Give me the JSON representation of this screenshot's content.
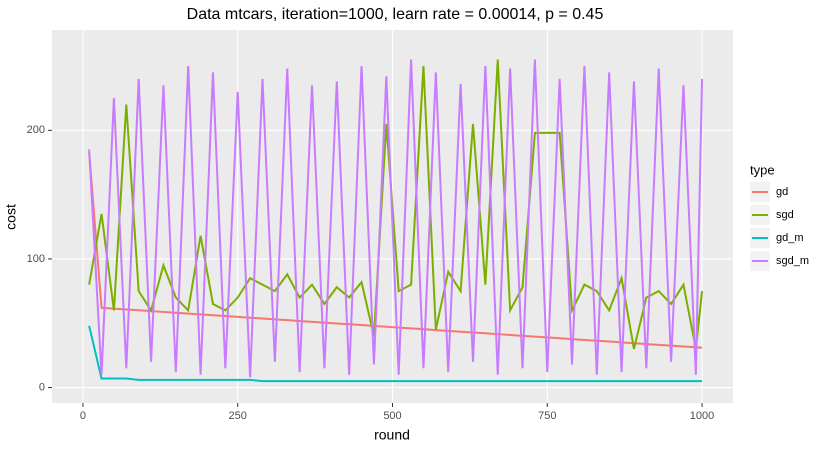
{
  "chart_data": {
    "type": "line",
    "title": "Data mtcars, iteration=1000, learn rate = 0.00014, p = 0.45",
    "x_label": "round",
    "y_label": "cost",
    "legend_title": "type",
    "x": [
      10,
      30,
      50,
      70,
      90,
      110,
      130,
      150,
      170,
      190,
      210,
      230,
      250,
      270,
      290,
      310,
      330,
      350,
      370,
      390,
      410,
      430,
      450,
      470,
      490,
      510,
      530,
      550,
      570,
      590,
      610,
      630,
      650,
      670,
      690,
      710,
      730,
      750,
      770,
      790,
      810,
      830,
      850,
      870,
      890,
      910,
      930,
      950,
      970,
      990,
      1000
    ],
    "series": [
      {
        "name": "gd",
        "color": "#F8766D",
        "values": [
          183,
          62,
          61.4,
          60.7,
          60.1,
          59.4,
          58.8,
          58.2,
          57.5,
          56.9,
          56.2,
          55.6,
          55,
          54.3,
          53.7,
          53,
          52.4,
          51.8,
          51.1,
          50.5,
          49.8,
          49.2,
          48.6,
          47.9,
          47.3,
          46.6,
          46,
          45.4,
          44.7,
          44.1,
          43.4,
          42.8,
          42.2,
          41.5,
          40.9,
          40.2,
          39.6,
          39,
          38.3,
          37.7,
          37,
          36.4,
          35.8,
          35.1,
          34.5,
          33.8,
          33.2,
          32.6,
          31.9,
          31.3,
          31
        ]
      },
      {
        "name": "sgd",
        "color": "#7CAE00",
        "values": [
          80,
          135,
          60,
          220,
          75,
          60,
          95,
          70,
          60,
          118,
          65,
          60,
          70,
          85,
          80,
          75,
          88,
          70,
          80,
          65,
          78,
          70,
          82,
          40,
          205,
          75,
          80,
          250,
          45,
          90,
          75,
          205,
          80,
          255,
          60,
          78,
          198,
          198,
          198,
          60,
          80,
          75,
          60,
          85,
          30,
          70,
          75,
          65,
          80,
          30,
          75
        ]
      },
      {
        "name": "gd_m",
        "color": "#00BFC4",
        "values": [
          48,
          7,
          7,
          7,
          6,
          6,
          6,
          6,
          6,
          6,
          6,
          6,
          6,
          6,
          5,
          5,
          5,
          5,
          5,
          5,
          5,
          5,
          5,
          5,
          5,
          5,
          5,
          5,
          5,
          5,
          5,
          5,
          5,
          5,
          5,
          5,
          5,
          5,
          5,
          5,
          5,
          5,
          5,
          5,
          5,
          5,
          5,
          5,
          5,
          5,
          5
        ]
      },
      {
        "name": "sgd_m",
        "color": "#C77CFF",
        "values": [
          185,
          10,
          225,
          15,
          240,
          20,
          235,
          12,
          250,
          10,
          245,
          15,
          230,
          8,
          240,
          20,
          248,
          12,
          235,
          15,
          238,
          10,
          250,
          18,
          242,
          10,
          255,
          15,
          245,
          12,
          236,
          20,
          250,
          10,
          248,
          15,
          255,
          12,
          240,
          18,
          250,
          10,
          245,
          12,
          238,
          15,
          248,
          20,
          235,
          10,
          240
        ]
      }
    ],
    "xlim": [
      -50,
      1050
    ],
    "xticks": [
      0,
      250,
      500,
      750,
      1000
    ],
    "ylim": [
      -12,
      278
    ],
    "yticks": [
      0,
      100,
      200
    ],
    "grid": true
  }
}
